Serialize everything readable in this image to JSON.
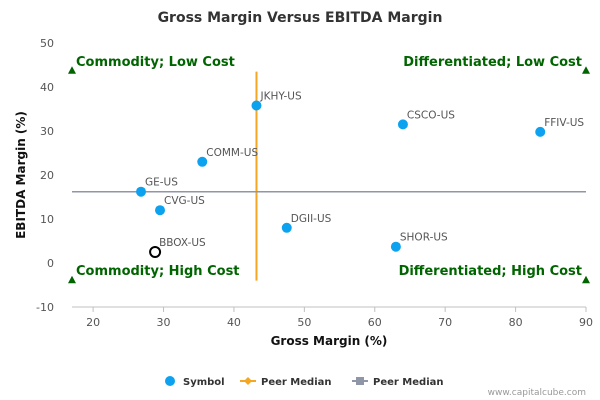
{
  "chart_data": {
    "type": "scatter",
    "title": "Gross Margin Versus EBITDA Margin",
    "xlabel": "Gross Margin (%)",
    "ylabel": "EBITDA Margin (%)",
    "xlim": [
      17,
      90
    ],
    "ylim": [
      -10,
      50
    ],
    "x_ticks": [
      20,
      30,
      40,
      50,
      60,
      70,
      80,
      90
    ],
    "y_ticks": [
      -10,
      0,
      10,
      20,
      30,
      40,
      50
    ],
    "grid": false,
    "points": [
      {
        "label": "JKHY-US",
        "x": 43.2,
        "y": 35.8,
        "hollow": false
      },
      {
        "label": "CSCO-US",
        "x": 64.0,
        "y": 31.5,
        "hollow": false
      },
      {
        "label": "FFIV-US",
        "x": 83.5,
        "y": 29.8,
        "hollow": false
      },
      {
        "label": "COMM-US",
        "x": 35.5,
        "y": 23.0,
        "hollow": false
      },
      {
        "label": "GE-US",
        "x": 26.8,
        "y": 16.2,
        "hollow": false
      },
      {
        "label": "CVG-US",
        "x": 29.5,
        "y": 12.0,
        "hollow": false
      },
      {
        "label": "DGII-US",
        "x": 47.5,
        "y": 8.0,
        "hollow": false
      },
      {
        "label": "SHOR-US",
        "x": 63.0,
        "y": 3.7,
        "hollow": false
      },
      {
        "label": "BBOX-US",
        "x": 28.8,
        "y": 2.5,
        "hollow": true
      }
    ],
    "peer_median_x": 43.2,
    "peer_median_y": 16.2,
    "quadrant_labels": {
      "top_left": "Commodity; Low Cost",
      "top_right": "Differentiated; Low Cost",
      "bottom_left": "Commodity; High Cost",
      "bottom_right": "Differentiated; High Cost"
    },
    "legend": [
      {
        "label": "Symbol",
        "marker": "circle",
        "color": "#0da2f0"
      },
      {
        "label": "Peer Median",
        "marker": "diamond",
        "color": "#f5a623"
      },
      {
        "label": "Peer Median",
        "marker": "square",
        "color": "#8f96a7"
      }
    ],
    "colors": {
      "point": "#0da2f0",
      "vertical_median": "#f5a623",
      "horizontal_median": "#8f96a7",
      "quadrant": "#006400"
    }
  },
  "credit": "www.capitalcube.com"
}
